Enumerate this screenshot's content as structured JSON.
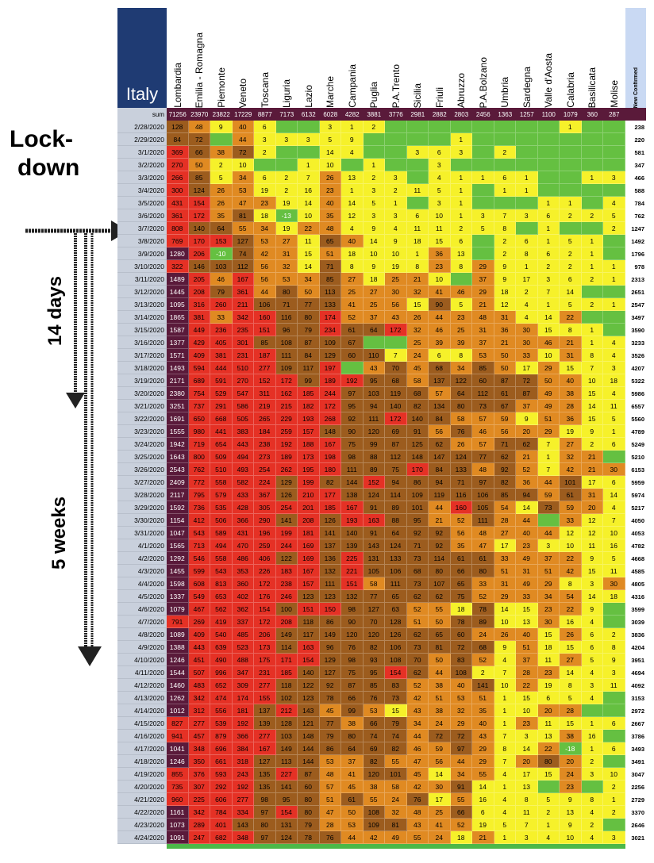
{
  "annotations": {
    "lockdown_line1": "Lock-",
    "lockdown_line2": "down",
    "days": "14 days",
    "weeks": "5 weeks"
  },
  "header": {
    "country": "Italy",
    "sum_label": "sum",
    "new_confirmed_label": "New Confirmed"
  },
  "chart_data": {
    "type": "table",
    "regions": [
      "Lombardia",
      "Emilia - Romagna",
      "Piemonte",
      "Veneto",
      "Toscana",
      "Liguria",
      "Lazio",
      "Marche",
      "Campania",
      "Puglia",
      "P.A.Trento",
      "Sicilia",
      "Friuli",
      "Abruzzo",
      "P.A.Bolzano",
      "Umbria",
      "Sardegna",
      "Valle d'Aosta",
      "Calabria",
      "Basilicata",
      "Molise"
    ],
    "sums": [
      71256,
      23970,
      23822,
      17229,
      8877,
      7173,
      6132,
      6028,
      4282,
      3881,
      3776,
      2981,
      2882,
      2803,
      2456,
      1363,
      1257,
      1100,
      1079,
      360,
      287
    ],
    "dates": [
      "2/28/2020",
      "2/29/2020",
      "3/1/2020",
      "3/2/2020",
      "3/3/2020",
      "3/4/2020",
      "3/5/2020",
      "3/6/2020",
      "3/7/2020",
      "3/8/2020",
      "3/9/2020",
      "3/10/2020",
      "3/11/2020",
      "3/12/2020",
      "3/13/2020",
      "3/14/2020",
      "3/15/2020",
      "3/16/2020",
      "3/17/2020",
      "3/18/2020",
      "3/19/2020",
      "3/20/2020",
      "3/21/2020",
      "3/22/2020",
      "3/23/2020",
      "3/24/2020",
      "3/25/2020",
      "3/26/2020",
      "3/27/2020",
      "3/28/2020",
      "3/29/2020",
      "3/30/2020",
      "3/31/2020",
      "4/1/2020",
      "4/2/2020",
      "4/3/2020",
      "4/4/2020",
      "4/5/2020",
      "4/6/2020",
      "4/7/2020",
      "4/8/2020",
      "4/9/2020",
      "4/10/2020",
      "4/11/2020",
      "4/12/2020",
      "4/13/2020",
      "4/14/2020",
      "4/15/2020",
      "4/16/2020",
      "4/17/2020",
      "4/18/2020",
      "4/19/2020",
      "4/20/2020",
      "4/21/2020",
      "4/22/2020",
      "4/23/2020",
      "4/24/2020"
    ],
    "new_confirmed": [
      238,
      220,
      581,
      347,
      466,
      588,
      784,
      762,
      1247,
      1492,
      1796,
      978,
      2313,
      2651,
      2547,
      3497,
      3590,
      3233,
      3526,
      4207,
      5322,
      5986,
      6557,
      5560,
      4789,
      5249,
      5210,
      6153,
      5959,
      5974,
      5217,
      4050,
      4053,
      4782,
      4668,
      4585,
      4805,
      4316,
      3599,
      3039,
      3836,
      4204,
      3951,
      4694,
      4092,
      3153,
      2972,
      2667,
      3786,
      3493,
      3491,
      3047,
      2256,
      2729,
      3370,
      2646,
      3021
    ],
    "rows": [
      [
        128,
        48,
        9,
        40,
        6,
        null,
        null,
        3,
        1,
        2,
        null,
        null,
        null,
        null,
        null,
        null,
        null,
        null,
        1,
        null,
        null
      ],
      [
        84,
        72,
        null,
        44,
        3,
        3,
        3,
        5,
        9,
        null,
        null,
        null,
        null,
        1,
        null,
        null,
        null,
        null,
        null,
        null,
        null
      ],
      [
        369,
        66,
        38,
        72,
        2,
        null,
        null,
        14,
        4,
        null,
        null,
        3,
        6,
        3,
        null,
        2,
        null,
        null,
        null,
        null,
        null
      ],
      [
        270,
        50,
        2,
        10,
        null,
        null,
        1,
        10,
        null,
        1,
        null,
        null,
        3,
        null,
        null,
        null,
        null,
        null,
        null,
        null,
        null
      ],
      [
        266,
        85,
        5,
        34,
        6,
        2,
        7,
        26,
        13,
        2,
        3,
        null,
        4,
        1,
        1,
        6,
        1,
        null,
        null,
        1,
        3
      ],
      [
        300,
        124,
        26,
        53,
        19,
        2,
        16,
        23,
        1,
        3,
        2,
        11,
        5,
        1,
        null,
        1,
        1,
        null,
        null,
        null,
        null
      ],
      [
        431,
        154,
        26,
        47,
        23,
        19,
        14,
        40,
        14,
        5,
        1,
        null,
        3,
        1,
        null,
        null,
        null,
        1,
        1,
        null,
        4
      ],
      [
        361,
        172,
        35,
        81,
        18,
        -13,
        10,
        35,
        12,
        3,
        3,
        6,
        10,
        1,
        3,
        7,
        3,
        6,
        2,
        2,
        5
      ],
      [
        808,
        140,
        64,
        55,
        34,
        19,
        22,
        48,
        4,
        9,
        4,
        11,
        11,
        2,
        5,
        8,
        null,
        1,
        null,
        null,
        2
      ],
      [
        769,
        170,
        153,
        127,
        53,
        27,
        11,
        65,
        40,
        14,
        9,
        18,
        15,
        6,
        null,
        2,
        6,
        1,
        5,
        1,
        null
      ],
      [
        1280,
        206,
        -10,
        74,
        42,
        31,
        15,
        51,
        18,
        10,
        10,
        1,
        36,
        13,
        null,
        2,
        8,
        6,
        2,
        1,
        null
      ],
      [
        322,
        146,
        103,
        112,
        56,
        32,
        14,
        71,
        8,
        9,
        19,
        8,
        23,
        8,
        29,
        9,
        1,
        2,
        2,
        1,
        1
      ],
      [
        1489,
        205,
        46,
        167,
        56,
        53,
        34,
        85,
        27,
        18,
        25,
        21,
        10,
        null,
        37,
        9,
        17,
        3,
        6,
        2,
        1
      ],
      [
        1445,
        208,
        79,
        361,
        44,
        80,
        50,
        113,
        25,
        27,
        30,
        32,
        41,
        46,
        29,
        18,
        2,
        7,
        14,
        null,
        null
      ],
      [
        1095,
        316,
        260,
        211,
        106,
        71,
        77,
        133,
        41,
        25,
        56,
        15,
        90,
        5,
        21,
        12,
        4,
        1,
        5,
        2,
        1
      ],
      [
        1865,
        381,
        33,
        342,
        160,
        116,
        80,
        174,
        52,
        37,
        43,
        26,
        44,
        23,
        48,
        31,
        4,
        14,
        22,
        null,
        null
      ],
      [
        1587,
        449,
        236,
        235,
        151,
        96,
        79,
        234,
        61,
        64,
        172,
        32,
        46,
        25,
        31,
        36,
        30,
        15,
        8,
        1,
        null
      ],
      [
        1377,
        429,
        405,
        301,
        85,
        108,
        87,
        109,
        67,
        null,
        null,
        25,
        39,
        39,
        37,
        21,
        30,
        46,
        21,
        1,
        4
      ],
      [
        1571,
        409,
        381,
        231,
        187,
        111,
        84,
        129,
        60,
        110,
        7,
        24,
        6,
        8,
        53,
        50,
        33,
        10,
        31,
        8,
        4
      ],
      [
        1493,
        594,
        444,
        510,
        277,
        109,
        117,
        197,
        null,
        43,
        70,
        45,
        68,
        34,
        85,
        50,
        17,
        29,
        15,
        7,
        3
      ],
      [
        2171,
        689,
        591,
        270,
        152,
        172,
        99,
        189,
        192,
        95,
        68,
        58,
        137,
        122,
        60,
        87,
        72,
        50,
        40,
        10,
        18
      ],
      [
        2380,
        754,
        529,
        547,
        311,
        162,
        185,
        244,
        97,
        103,
        119,
        68,
        57,
        64,
        112,
        61,
        87,
        49,
        38,
        15,
        4
      ],
      [
        3251,
        737,
        291,
        586,
        219,
        215,
        182,
        172,
        95,
        94,
        140,
        82,
        134,
        80,
        73,
        67,
        37,
        49,
        28,
        14,
        11
      ],
      [
        1691,
        650,
        668,
        505,
        265,
        229,
        193,
        268,
        92,
        111,
        172,
        140,
        84,
        58,
        57,
        59,
        9,
        51,
        36,
        15,
        5
      ],
      [
        1555,
        980,
        441,
        383,
        184,
        259,
        157,
        148,
        90,
        120,
        69,
        91,
        56,
        76,
        46,
        56,
        20,
        29,
        19,
        9,
        1
      ],
      [
        1942,
        719,
        654,
        443,
        238,
        192,
        188,
        167,
        75,
        99,
        87,
        125,
        62,
        26,
        57,
        71,
        62,
        7,
        27,
        2,
        6
      ],
      [
        1643,
        800,
        509,
        494,
        273,
        189,
        173,
        198,
        98,
        88,
        112,
        148,
        147,
        124,
        77,
        62,
        21,
        1,
        32,
        21,
        null
      ],
      [
        2543,
        762,
        510,
        493,
        254,
        262,
        195,
        180,
        111,
        89,
        75,
        170,
        84,
        133,
        48,
        92,
        52,
        7,
        42,
        21,
        30
      ],
      [
        2409,
        772,
        558,
        582,
        224,
        129,
        199,
        82,
        144,
        152,
        94,
        86,
        94,
        71,
        97,
        82,
        36,
        44,
        101,
        17,
        6
      ],
      [
        2117,
        795,
        579,
        433,
        367,
        126,
        210,
        177,
        138,
        124,
        114,
        109,
        119,
        116,
        106,
        85,
        94,
        59,
        61,
        31,
        14
      ],
      [
        1592,
        736,
        535,
        428,
        305,
        254,
        201,
        185,
        167,
        91,
        89,
        101,
        44,
        160,
        105,
        54,
        14,
        73,
        59,
        20,
        4
      ],
      [
        1154,
        412,
        506,
        366,
        290,
        141,
        208,
        126,
        193,
        163,
        88,
        95,
        21,
        52,
        111,
        28,
        44,
        null,
        33,
        12,
        7
      ],
      [
        1047,
        543,
        589,
        431,
        196,
        199,
        181,
        141,
        140,
        91,
        64,
        92,
        92,
        56,
        48,
        27,
        40,
        44,
        12,
        12,
        10
      ],
      [
        1565,
        713,
        494,
        470,
        259,
        244,
        169,
        137,
        139,
        143,
        124,
        71,
        92,
        35,
        47,
        17,
        23,
        3,
        10,
        11,
        16
      ],
      [
        1292,
        546,
        558,
        486,
        406,
        122,
        169,
        136,
        225,
        131,
        133,
        73,
        114,
        61,
        61,
        33,
        49,
        37,
        22,
        9,
        5
      ],
      [
        1455,
        599,
        543,
        353,
        226,
        183,
        167,
        132,
        221,
        105,
        106,
        68,
        80,
        66,
        80,
        51,
        31,
        51,
        42,
        15,
        11
      ],
      [
        1598,
        608,
        813,
        360,
        172,
        238,
        157,
        111,
        151,
        58,
        111,
        73,
        107,
        65,
        33,
        31,
        49,
        29,
        8,
        3,
        30
      ],
      [
        1337,
        549,
        653,
        402,
        176,
        246,
        123,
        123,
        132,
        77,
        65,
        62,
        62,
        75,
        52,
        29,
        33,
        34,
        54,
        14,
        18
      ],
      [
        1079,
        467,
        562,
        362,
        154,
        100,
        151,
        150,
        98,
        127,
        63,
        52,
        55,
        18,
        78,
        14,
        15,
        23,
        22,
        9,
        null
      ],
      [
        791,
        269,
        419,
        337,
        172,
        208,
        118,
        86,
        90,
        70,
        128,
        51,
        50,
        78,
        89,
        10,
        13,
        30,
        16,
        4,
        null
      ],
      [
        1089,
        409,
        540,
        485,
        206,
        149,
        117,
        149,
        120,
        120,
        126,
        62,
        65,
        60,
        24,
        26,
        40,
        15,
        26,
        6,
        2
      ],
      [
        1388,
        443,
        639,
        523,
        173,
        114,
        163,
        96,
        76,
        82,
        106,
        73,
        81,
        72,
        68,
        9,
        51,
        18,
        15,
        6,
        8
      ],
      [
        1246,
        451,
        490,
        488,
        175,
        171,
        154,
        129,
        98,
        93,
        108,
        70,
        50,
        83,
        52,
        4,
        37,
        11,
        27,
        5,
        9
      ],
      [
        1544,
        507,
        996,
        347,
        231,
        185,
        140,
        127,
        75,
        95,
        154,
        62,
        44,
        108,
        2,
        7,
        28,
        23,
        14,
        4,
        3
      ],
      [
        1460,
        483,
        652,
        309,
        277,
        118,
        122,
        92,
        87,
        85,
        83,
        52,
        38,
        40,
        141,
        10,
        22,
        19,
        8,
        3,
        11
      ],
      [
        1262,
        342,
        474,
        174,
        155,
        102,
        123,
        78,
        66,
        76,
        73,
        42,
        51,
        53,
        51,
        1,
        15,
        6,
        5,
        4,
        null
      ],
      [
        1012,
        312,
        556,
        181,
        137,
        212,
        143,
        45,
        99,
        53,
        15,
        43,
        38,
        32,
        35,
        1,
        10,
        20,
        28,
        null,
        null
      ],
      [
        827,
        277,
        539,
        192,
        139,
        128,
        121,
        77,
        38,
        66,
        79,
        34,
        24,
        29,
        40,
        1,
        23,
        11,
        15,
        1,
        6
      ],
      [
        941,
        457,
        879,
        366,
        277,
        103,
        148,
        79,
        80,
        74,
        74,
        44,
        72,
        72,
        43,
        7,
        3,
        13,
        38,
        16,
        null
      ],
      [
        1041,
        348,
        696,
        384,
        167,
        149,
        144,
        86,
        64,
        69,
        82,
        46,
        59,
        97,
        29,
        8,
        14,
        22,
        -18,
        1,
        6
      ],
      [
        1246,
        350,
        661,
        318,
        127,
        113,
        144,
        53,
        37,
        82,
        55,
        47,
        56,
        44,
        29,
        7,
        20,
        80,
        20,
        2,
        null
      ],
      [
        855,
        376,
        593,
        243,
        135,
        227,
        87,
        48,
        41,
        120,
        101,
        45,
        14,
        34,
        55,
        4,
        17,
        15,
        24,
        3,
        10
      ],
      [
        735,
        307,
        292,
        192,
        135,
        141,
        60,
        57,
        45,
        38,
        58,
        42,
        30,
        91,
        14,
        1,
        13,
        null,
        23,
        null,
        2
      ],
      [
        960,
        225,
        606,
        277,
        98,
        95,
        80,
        51,
        61,
        55,
        24,
        76,
        17,
        55,
        16,
        4,
        8,
        5,
        9,
        8,
        1
      ],
      [
        1161,
        342,
        784,
        334,
        97,
        154,
        80,
        47,
        50,
        108,
        32,
        48,
        25,
        66,
        6,
        4,
        11,
        2,
        13,
        4,
        2
      ],
      [
        1073,
        289,
        401,
        143,
        80,
        131,
        79,
        28,
        53,
        109,
        81,
        43,
        41,
        52,
        19,
        5,
        7,
        1,
        9,
        2,
        null
      ],
      [
        1091,
        247,
        682,
        348,
        97,
        124,
        78,
        76,
        44,
        42,
        49,
        55,
        24,
        18,
        21,
        1,
        3,
        4,
        10,
        4,
        3
      ]
    ]
  },
  "colors": {
    "purple": "#5a1a3a",
    "red": "#e53125",
    "brown": "#9c5c1e",
    "orange": "#e08a22",
    "yellow": "#f6f12a",
    "green": "#65c041"
  }
}
